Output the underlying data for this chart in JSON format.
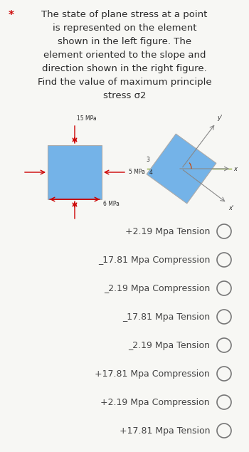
{
  "title_star": "*",
  "title_text": "The state of plane stress at a point\nis represented on the element\nshown in the left figure. The\nelement oriented to the slope and\ndirection shown in the right figure.\nFind the value of maximum principle\nstress σ2",
  "options": [
    "+2.19 Mpa Tension",
    "_17.81 Mpa Compression",
    "_2.19 Mpa Compression",
    "_17.81 Mpa Tension",
    "_2.19 Mpa Tension",
    "+17.81 Mpa Compression",
    "+2.19 Mpa Compression",
    "+17.81 Mpa Tension"
  ],
  "bg_color": "#f7f7f4",
  "box_color": "#74b3e8",
  "arrow_color": "#cc0000",
  "text_color": "#2a2a2a",
  "label_15mpa": "15 MPa",
  "label_5mpa": "5 MPa",
  "label_6mpa": "6 MPa",
  "circle_color": "#777777",
  "star_color": "#cc0000",
  "option_text_color": "#444444",
  "axis_color": "#888888",
  "green_color": "#88aa33"
}
